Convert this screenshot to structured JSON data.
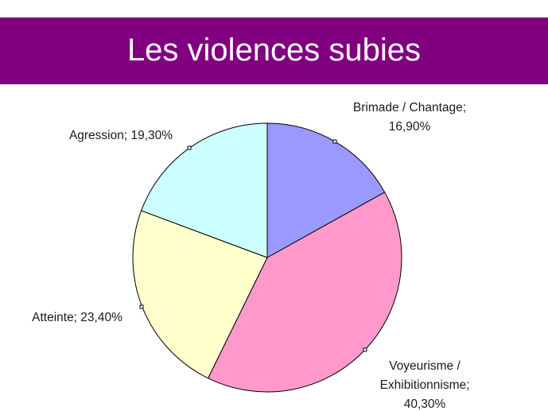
{
  "slide": {
    "title": "Les violences subies"
  },
  "colors": {
    "title_bar": "#80007f",
    "title_text": "#ffffff"
  },
  "chart_data": {
    "type": "pie",
    "title": "Les violences subies",
    "start_angle_deg": 0,
    "direction": "clockwise",
    "slices": [
      {
        "name": "Brimade / Chantage",
        "value": 16.9,
        "label_lines": [
          "Brimade / Chantage;",
          "16,90%"
        ],
        "color": "#9999ff"
      },
      {
        "name": "Voyeurisme / Exhibitionnisme",
        "value": 40.3,
        "label_lines": [
          "Voyeurisme /",
          "Exhibitionnisme;",
          "40,30%"
        ],
        "color": "#ff99cc"
      },
      {
        "name": "Atteinte",
        "value": 23.4,
        "label_lines": [
          "Atteinte; 23,40%"
        ],
        "color": "#ffffcc"
      },
      {
        "name": "Agression",
        "value": 19.3,
        "label_lines": [
          "Agression; 19,30%"
        ],
        "color": "#ccffff"
      }
    ]
  }
}
